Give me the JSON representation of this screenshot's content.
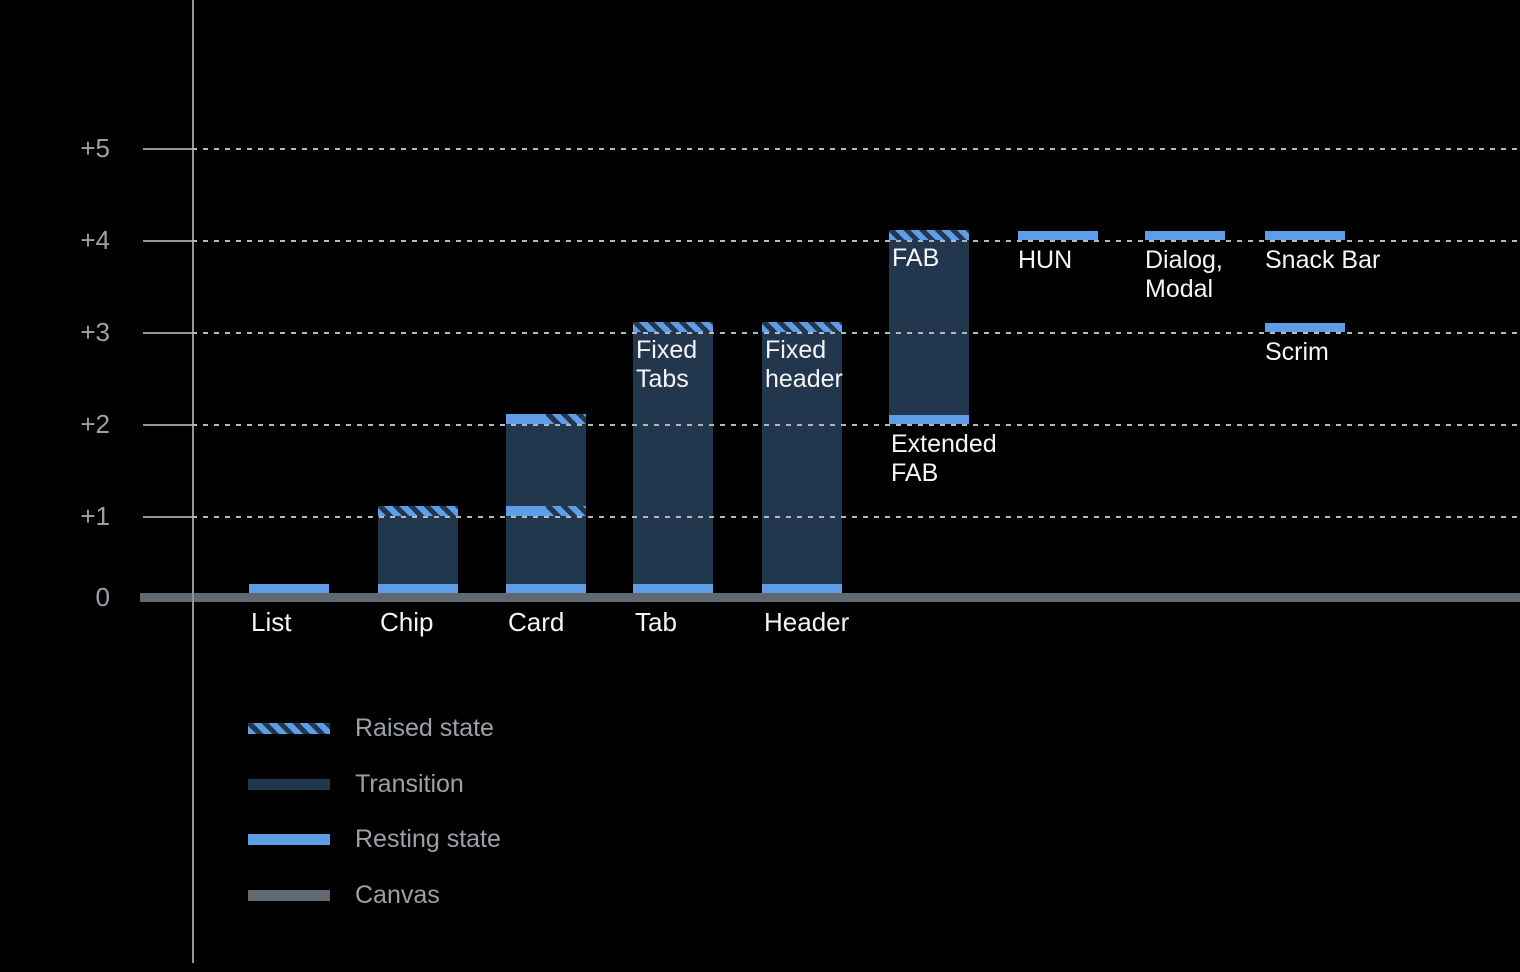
{
  "background": "#000000",
  "colors": {
    "resting": "#5E9EE6",
    "transition": "#22364D",
    "canvas_line": "#60696F",
    "axis": "#8E969D",
    "grid_dot": "#B2B8BD",
    "text_muted": "#9BA1A7",
    "text_bright": "#F4F5F6"
  },
  "chart_data": {
    "type": "bar",
    "title": "",
    "y_axis": {
      "tick_labels": [
        "+5",
        "+4",
        "+3",
        "+2",
        "+1",
        "0"
      ],
      "tick_values": [
        5,
        4,
        3,
        2,
        1,
        0
      ],
      "range": [
        0,
        5
      ],
      "gridlines": "dotted",
      "baseline_label": "0"
    },
    "legend": {
      "position": "bottom-left",
      "entries": [
        {
          "key": "raised",
          "label": "Raised state"
        },
        {
          "key": "transition",
          "label": "Transition"
        },
        {
          "key": "resting",
          "label": "Resting state"
        },
        {
          "key": "canvas",
          "label": "Canvas"
        }
      ]
    },
    "components": [
      {
        "name": "List",
        "col": 0,
        "axis_label": "List",
        "resting_elevations": [
          0
        ]
      },
      {
        "name": "Chip",
        "col": 1,
        "axis_label": "Chip",
        "resting_elevations": [
          0
        ],
        "raised_elevation": 1,
        "transition_range": [
          0,
          1
        ]
      },
      {
        "name": "Card",
        "col": 2,
        "axis_label": "Card",
        "resting_elevations": [
          0
        ],
        "split_elevations": [
          1,
          2
        ],
        "transition_range": [
          0,
          2
        ]
      },
      {
        "name": "Tab",
        "col": 3,
        "axis_label": "Tab",
        "inner_label_lines": [
          "Fixed",
          "Tabs"
        ],
        "resting_elevations": [
          0
        ],
        "raised_elevation": 3,
        "transition_range": [
          0,
          3
        ]
      },
      {
        "name": "Header",
        "col": 4,
        "axis_label": "Header",
        "inner_label_lines": [
          "Fixed",
          "header"
        ],
        "resting_elevations": [
          0
        ],
        "raised_elevation": 3,
        "transition_range": [
          0,
          3
        ]
      },
      {
        "name": "FAB",
        "col": 5,
        "inner_label_lines": [
          "FAB"
        ],
        "under_label_lines": [
          "Extended",
          "FAB"
        ],
        "resting_elevations": [
          2
        ],
        "raised_elevation": 4,
        "transition_range": [
          2,
          4
        ]
      },
      {
        "name": "HUN",
        "col": 6,
        "float_label_lines": [
          "HUN"
        ],
        "resting_elevations": [
          4
        ]
      },
      {
        "name": "Dialog, Modal",
        "col": 7,
        "float_label_lines": [
          "Dialog,",
          "Modal"
        ],
        "resting_elevations": [
          4
        ]
      },
      {
        "name": "Snack Bar",
        "col": 8,
        "float_label_lines": [
          "Snack Bar"
        ],
        "resting_elevations": [
          4
        ]
      },
      {
        "name": "Scrim",
        "col": 8,
        "float_label_lines": [
          "Scrim"
        ],
        "resting_elevations": [
          3
        ]
      }
    ]
  }
}
